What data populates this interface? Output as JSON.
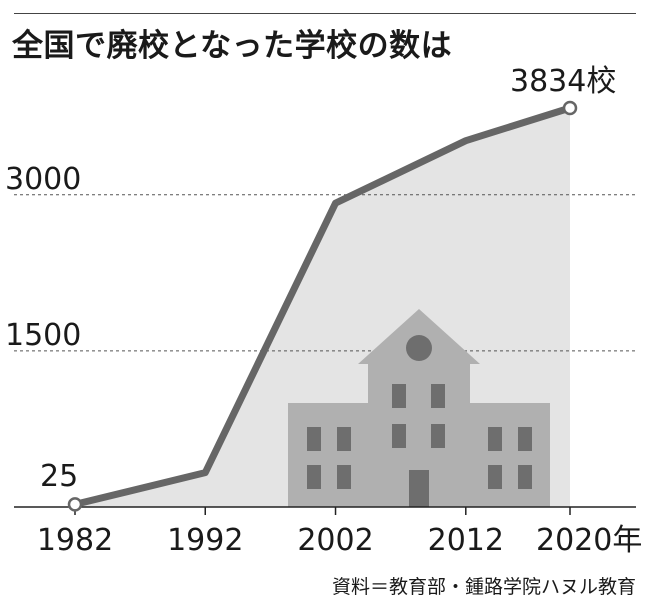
{
  "title": "全国で廃校となった学校の数は",
  "source": "資料＝教育部・鍾路学院ハヌル教育",
  "colors": {
    "line": "#666666",
    "area": "#e4e4e4",
    "building": "#b0b0b0",
    "window": "#6e6e6e",
    "grid": "#555555",
    "text": "#1a1a1a"
  },
  "chart_data": {
    "type": "area",
    "title": "全国で廃校となった学校の数は",
    "x": [
      1982,
      1992,
      2002,
      2012,
      2020
    ],
    "x_tick_labels": [
      "1982",
      "1992",
      "2002",
      "2012",
      "2020年"
    ],
    "series": [
      {
        "values": [
          25,
          330,
          2920,
          3520,
          3834
        ]
      }
    ],
    "y_tick_labels": [
      "3000",
      "1500"
    ],
    "y_ticks": [
      3000,
      1500
    ],
    "ylim": [
      0,
      3834
    ],
    "annotations": [
      {
        "x": 1982,
        "y": 25,
        "text": "25"
      },
      {
        "x": 2020,
        "y": 3834,
        "text": "3834校"
      }
    ],
    "grid": "dashed horizontal at 1500 and 3000"
  }
}
